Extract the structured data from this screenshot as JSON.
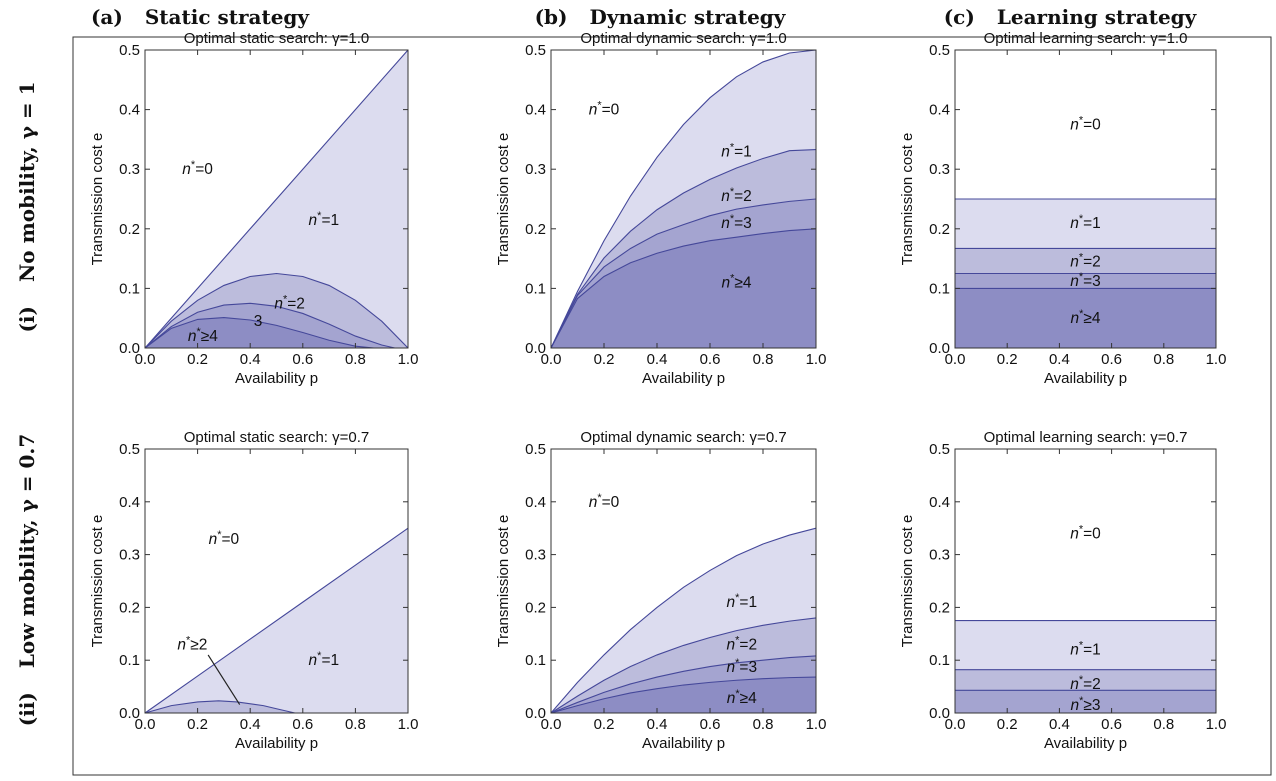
{
  "columns": [
    {
      "label": "(a)",
      "title": "Static strategy"
    },
    {
      "label": "(b)",
      "title": "Dynamic strategy"
    },
    {
      "label": "(c)",
      "title": "Learning strategy"
    }
  ],
  "rows": [
    {
      "label": "(i)",
      "title": "No mobility, γ = 1"
    },
    {
      "label": "(ii)",
      "title": "Low mobility, γ = 0.7"
    }
  ],
  "colors": {
    "line": "#45489a",
    "fill_1": "#dcdcef",
    "fill_2": "#bcbcdc",
    "fill_3": "#a4a4d0",
    "fill_4": "#8d8dc4",
    "frame": "#333333"
  },
  "chart_data": [
    {
      "id": "static-g1",
      "type": "area",
      "title": "Optimal static search: γ=1.0",
      "xlabel": "Availability p",
      "ylabel": "Transmission cost e",
      "xlim": [
        0,
        1
      ],
      "ylim": [
        0,
        0.5
      ],
      "xticks": [
        "0.0",
        "0.2",
        "0.4",
        "0.6",
        "0.8",
        "1.0"
      ],
      "yticks": [
        "0.0",
        "0.1",
        "0.2",
        "0.3",
        "0.4",
        "0.5"
      ],
      "boundaries": [
        {
          "x": [
            0,
            0.2,
            0.4,
            0.6,
            0.8,
            1.0
          ],
          "y": [
            0,
            0.1,
            0.2,
            0.3,
            0.4,
            0.5
          ]
        },
        {
          "x": [
            0,
            0.1,
            0.2,
            0.3,
            0.4,
            0.5,
            0.6,
            0.7,
            0.8,
            0.9,
            1.0
          ],
          "y": [
            0,
            0.045,
            0.08,
            0.105,
            0.12,
            0.125,
            0.12,
            0.105,
            0.08,
            0.045,
            0
          ]
        },
        {
          "x": [
            0,
            0.1,
            0.2,
            0.3,
            0.4,
            0.5,
            0.6,
            0.7,
            0.8,
            0.9,
            0.95
          ],
          "y": [
            0,
            0.036,
            0.06,
            0.072,
            0.075,
            0.07,
            0.058,
            0.04,
            0.02,
            0.005,
            0
          ]
        },
        {
          "x": [
            0,
            0.1,
            0.2,
            0.3,
            0.4,
            0.5,
            0.6,
            0.7,
            0.8,
            0.87
          ],
          "y": [
            0,
            0.033,
            0.048,
            0.051,
            0.047,
            0.038,
            0.026,
            0.013,
            0.003,
            0
          ]
        }
      ],
      "labels": [
        {
          "text": "n*=0",
          "x": 0.2,
          "y": 0.3
        },
        {
          "text": "n*=1",
          "x": 0.68,
          "y": 0.215
        },
        {
          "text": "n*=2",
          "x": 0.55,
          "y": 0.075
        },
        {
          "text": "3",
          "x": 0.43,
          "y": 0.045
        },
        {
          "text": "n*≥4",
          "x": 0.22,
          "y": 0.02
        }
      ]
    },
    {
      "id": "dynamic-g1",
      "type": "area",
      "title": "Optimal dynamic search: γ=1.0",
      "xlabel": "Availability p",
      "ylabel": "Transmission cost e",
      "xlim": [
        0,
        1
      ],
      "ylim": [
        0,
        0.5
      ],
      "xticks": [
        "0.0",
        "0.2",
        "0.4",
        "0.6",
        "0.8",
        "1.0"
      ],
      "yticks": [
        "0.0",
        "0.1",
        "0.2",
        "0.3",
        "0.4",
        "0.5"
      ],
      "boundaries": [
        {
          "x": [
            0,
            0.1,
            0.2,
            0.3,
            0.4,
            0.5,
            0.6,
            0.7,
            0.8,
            0.9,
            1.0
          ],
          "y": [
            0,
            0.095,
            0.18,
            0.255,
            0.32,
            0.375,
            0.42,
            0.455,
            0.48,
            0.495,
            0.5
          ]
        },
        {
          "x": [
            0,
            0.1,
            0.2,
            0.3,
            0.4,
            0.5,
            0.6,
            0.7,
            0.8,
            0.9,
            1.0
          ],
          "y": [
            0,
            0.09,
            0.151,
            0.196,
            0.232,
            0.26,
            0.283,
            0.302,
            0.318,
            0.331,
            0.333
          ]
        },
        {
          "x": [
            0,
            0.1,
            0.2,
            0.3,
            0.4,
            0.5,
            0.6,
            0.7,
            0.8,
            0.9,
            1.0
          ],
          "y": [
            0,
            0.088,
            0.136,
            0.167,
            0.191,
            0.207,
            0.222,
            0.233,
            0.24,
            0.246,
            0.25
          ]
        },
        {
          "x": [
            0,
            0.1,
            0.2,
            0.3,
            0.4,
            0.5,
            0.6,
            0.7,
            0.8,
            0.9,
            1.0
          ],
          "y": [
            0,
            0.083,
            0.12,
            0.143,
            0.159,
            0.171,
            0.18,
            0.186,
            0.192,
            0.197,
            0.2
          ]
        }
      ],
      "labels": [
        {
          "text": "n*=0",
          "x": 0.2,
          "y": 0.4
        },
        {
          "text": "n*=1",
          "x": 0.7,
          "y": 0.33
        },
        {
          "text": "n*=2",
          "x": 0.7,
          "y": 0.255
        },
        {
          "text": "n*=3",
          "x": 0.7,
          "y": 0.21
        },
        {
          "text": "n*≥4",
          "x": 0.7,
          "y": 0.11
        }
      ]
    },
    {
      "id": "learning-g1",
      "type": "area",
      "title": "Optimal learning search: γ=1.0",
      "xlabel": "Availability p",
      "ylabel": "Transmission cost e",
      "xlim": [
        0,
        1
      ],
      "ylim": [
        0,
        0.5
      ],
      "xticks": [
        "0.0",
        "0.2",
        "0.4",
        "0.6",
        "0.8",
        "1.0"
      ],
      "yticks": [
        "0.0",
        "0.1",
        "0.2",
        "0.3",
        "0.4",
        "0.5"
      ],
      "boundaries": [
        {
          "x": [
            0,
            1
          ],
          "y": [
            0.25,
            0.25
          ]
        },
        {
          "x": [
            0,
            1
          ],
          "y": [
            0.167,
            0.167
          ]
        },
        {
          "x": [
            0,
            1
          ],
          "y": [
            0.125,
            0.125
          ]
        },
        {
          "x": [
            0,
            1
          ],
          "y": [
            0.1,
            0.1
          ]
        }
      ],
      "labels": [
        {
          "text": "n*=0",
          "x": 0.5,
          "y": 0.375
        },
        {
          "text": "n*=1",
          "x": 0.5,
          "y": 0.21
        },
        {
          "text": "n*=2",
          "x": 0.5,
          "y": 0.145
        },
        {
          "text": "n*=3",
          "x": 0.5,
          "y": 0.112
        },
        {
          "text": "n*≥4",
          "x": 0.5,
          "y": 0.05
        }
      ]
    },
    {
      "id": "static-g07",
      "type": "area",
      "title": "Optimal static search: γ=0.7",
      "xlabel": "Availability p",
      "ylabel": "Transmission cost e",
      "xlim": [
        0,
        1
      ],
      "ylim": [
        0,
        0.5
      ],
      "xticks": [
        "0.0",
        "0.2",
        "0.4",
        "0.6",
        "0.8",
        "1.0"
      ],
      "yticks": [
        "0.0",
        "0.1",
        "0.2",
        "0.3",
        "0.4",
        "0.5"
      ],
      "boundaries": [
        {
          "x": [
            0,
            0.2,
            0.4,
            0.6,
            0.8,
            1.0
          ],
          "y": [
            0,
            0.07,
            0.14,
            0.21,
            0.28,
            0.35
          ]
        },
        {
          "x": [
            0,
            0.1,
            0.2,
            0.28,
            0.35,
            0.45,
            0.5,
            0.57
          ],
          "y": [
            0,
            0.014,
            0.021,
            0.023,
            0.021,
            0.014,
            0.008,
            0
          ]
        }
      ],
      "labels": [
        {
          "text": "n*=0",
          "x": 0.3,
          "y": 0.33
        },
        {
          "text": "n*=1",
          "x": 0.68,
          "y": 0.1
        },
        {
          "text": "n*≥2",
          "x": 0.18,
          "y": 0.13
        }
      ],
      "pointer": {
        "from": [
          0.24,
          0.11
        ],
        "to": [
          0.36,
          0.016
        ]
      }
    },
    {
      "id": "dynamic-g07",
      "type": "area",
      "title": "Optimal dynamic search: γ=0.7",
      "xlabel": "Availability p",
      "ylabel": "Transmission cost e",
      "xlim": [
        0,
        1
      ],
      "ylim": [
        0,
        0.5
      ],
      "xticks": [
        "0.0",
        "0.2",
        "0.4",
        "0.6",
        "0.8",
        "1.0"
      ],
      "yticks": [
        "0.0",
        "0.1",
        "0.2",
        "0.3",
        "0.4",
        "0.5"
      ],
      "boundaries": [
        {
          "x": [
            0,
            0.1,
            0.2,
            0.3,
            0.4,
            0.5,
            0.6,
            0.7,
            0.8,
            0.9,
            1.0
          ],
          "y": [
            0,
            0.058,
            0.11,
            0.158,
            0.2,
            0.238,
            0.27,
            0.298,
            0.32,
            0.337,
            0.35
          ]
        },
        {
          "x": [
            0,
            0.1,
            0.2,
            0.3,
            0.4,
            0.5,
            0.6,
            0.7,
            0.8,
            0.9,
            1.0
          ],
          "y": [
            0,
            0.032,
            0.062,
            0.088,
            0.11,
            0.128,
            0.143,
            0.156,
            0.166,
            0.174,
            0.18
          ]
        },
        {
          "x": [
            0,
            0.1,
            0.2,
            0.3,
            0.4,
            0.5,
            0.6,
            0.7,
            0.8,
            0.9,
            1.0
          ],
          "y": [
            0,
            0.02,
            0.039,
            0.055,
            0.068,
            0.079,
            0.088,
            0.095,
            0.1,
            0.105,
            0.108
          ]
        },
        {
          "x": [
            0,
            0.1,
            0.2,
            0.3,
            0.4,
            0.5,
            0.6,
            0.7,
            0.8,
            0.9,
            1.0
          ],
          "y": [
            0,
            0.014,
            0.027,
            0.038,
            0.046,
            0.053,
            0.058,
            0.062,
            0.065,
            0.067,
            0.068
          ]
        }
      ],
      "labels": [
        {
          "text": "n*=0",
          "x": 0.2,
          "y": 0.4
        },
        {
          "text": "n*=1",
          "x": 0.72,
          "y": 0.21
        },
        {
          "text": "n*=2",
          "x": 0.72,
          "y": 0.13
        },
        {
          "text": "n*=3",
          "x": 0.72,
          "y": 0.087
        },
        {
          "text": "n*≥4",
          "x": 0.72,
          "y": 0.028
        }
      ]
    },
    {
      "id": "learning-g07",
      "type": "area",
      "title": "Optimal learning search: γ=0.7",
      "xlabel": "Availability p",
      "ylabel": "Transmission cost e",
      "xlim": [
        0,
        1
      ],
      "ylim": [
        0,
        0.5
      ],
      "xticks": [
        "0.0",
        "0.2",
        "0.4",
        "0.6",
        "0.8",
        "1.0"
      ],
      "yticks": [
        "0.0",
        "0.1",
        "0.2",
        "0.3",
        "0.4",
        "0.5"
      ],
      "boundaries": [
        {
          "x": [
            0,
            1
          ],
          "y": [
            0.175,
            0.175
          ]
        },
        {
          "x": [
            0,
            1
          ],
          "y": [
            0.082,
            0.082
          ]
        },
        {
          "x": [
            0,
            1
          ],
          "y": [
            0.043,
            0.043
          ]
        }
      ],
      "labels": [
        {
          "text": "n*=0",
          "x": 0.5,
          "y": 0.34
        },
        {
          "text": "n*=1",
          "x": 0.5,
          "y": 0.12
        },
        {
          "text": "n*=2",
          "x": 0.5,
          "y": 0.055
        },
        {
          "text": "n*≥3",
          "x": 0.5,
          "y": 0.015
        }
      ]
    }
  ]
}
